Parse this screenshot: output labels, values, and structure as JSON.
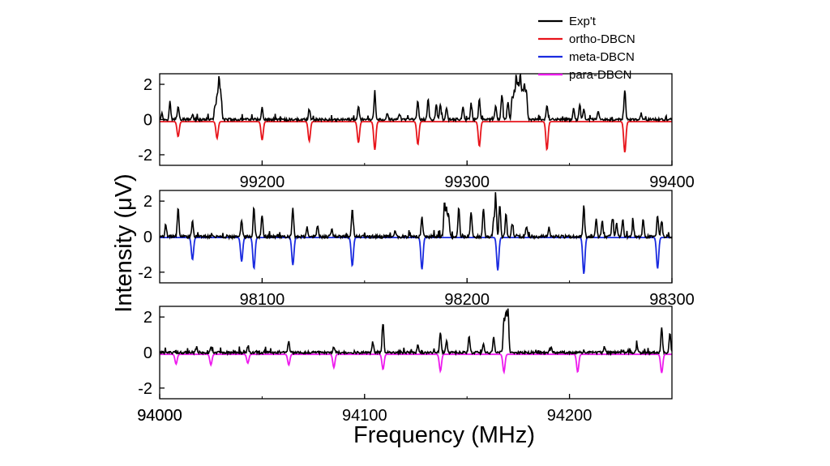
{
  "chart_data": {
    "type": "line",
    "xlabel": "Frequency (MHz)",
    "ylabel": "Intensity (μV)",
    "legend": {
      "placement": "top-right",
      "entries": [
        {
          "label": "Exp't",
          "color": "#000000"
        },
        {
          "label": "ortho-DBCN",
          "color": "#e8141b"
        },
        {
          "label": "meta-DBCN",
          "color": "#1a2be0"
        },
        {
          "label": "para-DBCN",
          "color": "#ee1bee"
        }
      ]
    },
    "panels": [
      {
        "xlim": [
          99150,
          99400
        ],
        "ylim": [
          -2.6,
          2.6
        ],
        "xticks": [
          "99200",
          "99300",
          "99400"
        ],
        "xtick_values": [
          99200,
          99300,
          99400
        ],
        "yticks": [
          "2",
          "0",
          "-2"
        ],
        "ytick_values": [
          2,
          0,
          -2
        ],
        "simulation": {
          "name": "ortho-DBCN",
          "color": "#e8141b",
          "baseline": -0.12,
          "peaks": [
            [
              99159,
              -0.85
            ],
            [
              99178,
              -0.95
            ],
            [
              99200,
              -1.05
            ],
            [
              99223,
              -1.1
            ],
            [
              99247,
              -1.2
            ],
            [
              99255,
              -1.6
            ],
            [
              99276,
              -1.3
            ],
            [
              99306,
              -1.4
            ],
            [
              99339,
              -1.6
            ],
            [
              99377,
              -1.75
            ]
          ]
        },
        "experiment": {
          "name": "Exp't",
          "color": "#000000",
          "baseline": 0.0,
          "noise": 0.1,
          "peaks": [
            [
              99151,
              0.35
            ],
            [
              99155,
              1.0
            ],
            [
              99159,
              0.8
            ],
            [
              99166,
              0.3
            ],
            [
              99177,
              0.8
            ],
            [
              99178,
              1.3
            ],
            [
              99179,
              2.4
            ],
            [
              99180,
              1.25
            ],
            [
              99200,
              0.7
            ],
            [
              99223,
              0.6
            ],
            [
              99247,
              0.75
            ],
            [
              99255,
              1.5
            ],
            [
              99261,
              0.4
            ],
            [
              99267,
              0.35
            ],
            [
              99276,
              1.05
            ],
            [
              99281,
              1.15
            ],
            [
              99285,
              0.85
            ],
            [
              99287,
              0.9
            ],
            [
              99290,
              0.7
            ],
            [
              99298,
              0.7
            ],
            [
              99302,
              0.9
            ],
            [
              99306,
              1.25
            ],
            [
              99314,
              0.8
            ],
            [
              99317,
              1.4
            ],
            [
              99320,
              1.0
            ],
            [
              99322,
              1.3
            ],
            [
              99323,
              1.5
            ],
            [
              99324,
              2.45
            ],
            [
              99325,
              1.9
            ],
            [
              99326,
              2.45
            ],
            [
              99327,
              1.6
            ],
            [
              99328,
              1.9
            ],
            [
              99329,
              1.6
            ],
            [
              99339,
              0.85
            ],
            [
              99352,
              0.6
            ],
            [
              99355,
              0.9
            ],
            [
              99357,
              0.6
            ],
            [
              99364,
              0.45
            ],
            [
              99377,
              1.7
            ],
            [
              99385,
              0.35
            ]
          ]
        }
      },
      {
        "xlim": [
          98050,
          98300
        ],
        "ylim": [
          -2.6,
          2.6
        ],
        "xticks": [
          "98100",
          "98200",
          "98300"
        ],
        "xtick_values": [
          98100,
          98200,
          98300
        ],
        "yticks": [
          "2",
          "0",
          "-2"
        ],
        "ytick_values": [
          2,
          0,
          -2
        ],
        "simulation": {
          "name": "meta-DBCN",
          "color": "#1a2be0",
          "baseline": -0.05,
          "peaks": [
            [
              98066,
              -1.25
            ],
            [
              98090,
              -1.35
            ],
            [
              98096,
              -1.75
            ],
            [
              98115,
              -1.55
            ],
            [
              98144,
              -1.6
            ],
            [
              98178,
              -1.8
            ],
            [
              98215,
              -1.85
            ],
            [
              98257,
              -2.05
            ],
            [
              98293,
              -1.75
            ]
          ]
        },
        "experiment": {
          "name": "Exp't",
          "color": "#000000",
          "baseline": 0.0,
          "noise": 0.12,
          "peaks": [
            [
              98053,
              0.7
            ],
            [
              98059,
              1.7
            ],
            [
              98066,
              0.9
            ],
            [
              98090,
              0.95
            ],
            [
              98096,
              1.65
            ],
            [
              98100,
              1.25
            ],
            [
              98115,
              1.6
            ],
            [
              98122,
              0.5
            ],
            [
              98127,
              0.65
            ],
            [
              98134,
              0.4
            ],
            [
              98144,
              1.55
            ],
            [
              98165,
              0.35
            ],
            [
              98178,
              1.1
            ],
            [
              98189,
              1.85
            ],
            [
              98190,
              1.5
            ],
            [
              98191,
              1.2
            ],
            [
              98196,
              1.6
            ],
            [
              98202,
              1.45
            ],
            [
              98208,
              1.65
            ],
            [
              98213,
              1.0
            ],
            [
              98214,
              2.2
            ],
            [
              98216,
              1.8
            ],
            [
              98219,
              1.3
            ],
            [
              98222,
              0.7
            ],
            [
              98229,
              0.6
            ],
            [
              98240,
              0.5
            ],
            [
              98257,
              1.75
            ],
            [
              98263,
              1.0
            ],
            [
              98266,
              0.9
            ],
            [
              98271,
              1.05
            ],
            [
              98273,
              0.75
            ],
            [
              98276,
              1.0
            ],
            [
              98281,
              0.8
            ],
            [
              98286,
              1.0
            ],
            [
              98293,
              1.2
            ],
            [
              98295,
              0.9
            ]
          ]
        }
      },
      {
        "xlim": [
          94000,
          94250
        ],
        "ylim": [
          -2.6,
          2.6
        ],
        "xticks": [
          "94000",
          "94100",
          "94200"
        ],
        "xtick_values": [
          94000,
          94100,
          94200
        ],
        "yticks": [
          "2",
          "0",
          "-2"
        ],
        "ytick_values": [
          2,
          0,
          -2
        ],
        "simulation": {
          "name": "para-DBCN",
          "color": "#ee1bee",
          "baseline": -0.1,
          "peaks": [
            [
              94008,
              -0.55
            ],
            [
              94025,
              -0.6
            ],
            [
              94043,
              -0.5
            ],
            [
              94063,
              -0.6
            ],
            [
              94085,
              -0.75
            ],
            [
              94109,
              -0.85
            ],
            [
              94137,
              -0.95
            ],
            [
              94168,
              -1.0
            ],
            [
              94204,
              -1.0
            ],
            [
              94245,
              -1.05
            ]
          ]
        },
        "experiment": {
          "name": "Exp't",
          "color": "#000000",
          "baseline": 0.0,
          "noise": 0.1,
          "peaks": [
            [
              94018,
              0.3
            ],
            [
              94025,
              0.35
            ],
            [
              94043,
              0.3
            ],
            [
              94063,
              0.6
            ],
            [
              94085,
              0.35
            ],
            [
              94104,
              0.6
            ],
            [
              94109,
              1.65
            ],
            [
              94126,
              0.45
            ],
            [
              94137,
              1.1
            ],
            [
              94140,
              0.7
            ],
            [
              94151,
              0.9
            ],
            [
              94158,
              0.45
            ],
            [
              94163,
              0.95
            ],
            [
              94168,
              1.9
            ],
            [
              94169,
              2.2
            ],
            [
              94170,
              2.4
            ],
            [
              94191,
              0.3
            ],
            [
              94217,
              0.35
            ],
            [
              94233,
              0.4
            ],
            [
              94245,
              1.4
            ],
            [
              94249,
              1.15
            ]
          ]
        }
      }
    ]
  }
}
